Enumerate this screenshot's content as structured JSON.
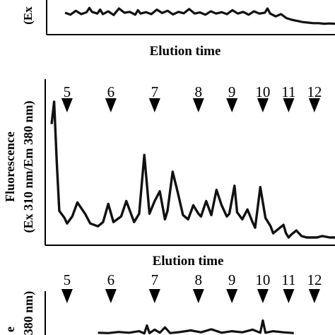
{
  "chart_data": [
    {
      "type": "line",
      "panel": "top (cropped)",
      "xlabel": "Elution time",
      "ylabel_fragment": "(Ex",
      "series": [
        {
          "color": "#111111",
          "x": [
            0,
            2,
            4,
            6,
            8,
            9,
            10,
            12,
            13,
            14,
            16,
            18,
            20,
            22,
            24,
            26,
            27,
            28,
            30,
            32,
            34,
            36,
            38,
            40,
            42,
            44,
            46,
            48,
            50,
            52,
            54,
            56,
            58,
            60,
            62,
            64,
            66,
            68,
            70,
            72,
            74,
            75,
            76,
            78,
            80,
            82,
            84,
            86,
            88,
            90,
            92,
            94,
            96,
            98,
            100
          ],
          "y": [
            0.55,
            0.48,
            0.62,
            0.5,
            0.57,
            0.72,
            0.58,
            0.52,
            0.66,
            0.5,
            0.6,
            0.47,
            0.7,
            0.55,
            0.58,
            0.48,
            0.64,
            0.52,
            0.57,
            0.5,
            0.66,
            0.54,
            0.62,
            0.49,
            0.58,
            0.53,
            0.68,
            0.52,
            0.56,
            0.48,
            0.6,
            0.52,
            0.57,
            0.5,
            0.64,
            0.52,
            0.58,
            0.48,
            0.6,
            0.52,
            0.55,
            0.7,
            0.52,
            0.42,
            0.5,
            0.36,
            0.3,
            0.26,
            0.22,
            0.2,
            0.18,
            0.18,
            0.16,
            0.17,
            0.16
          ]
        }
      ]
    },
    {
      "type": "line",
      "panel": "middle",
      "xlabel": "Elution time",
      "ylabel": "Fluorescence",
      "ylabel2": "(Ex 310 nm/Em 380 nm)",
      "markers": [
        "5",
        "6",
        "7",
        "8",
        "9",
        "10",
        "11",
        "12"
      ],
      "marker_positions": [
        6,
        23,
        40,
        57,
        70,
        82,
        92,
        102
      ],
      "xlim": [
        0,
        110
      ],
      "ylim": [
        0,
        1
      ],
      "series": [
        {
          "color": "#111111",
          "x": [
            0,
            1,
            2,
            3,
            5,
            6,
            8,
            10,
            13,
            15,
            18,
            20,
            22,
            24,
            27,
            29,
            32,
            34,
            36,
            38,
            40,
            42,
            44,
            45,
            47,
            49,
            51,
            53,
            55,
            57,
            58,
            60,
            62,
            64,
            66,
            68,
            69,
            71,
            72,
            74,
            76,
            78,
            79,
            81,
            83,
            85,
            86,
            88,
            90,
            91,
            92,
            93,
            95,
            97,
            99,
            101,
            103,
            105,
            108,
            110
          ],
          "y": [
            0.82,
            0.98,
            0.55,
            0.2,
            0.15,
            0.11,
            0.16,
            0.26,
            0.18,
            0.11,
            0.09,
            0.12,
            0.25,
            0.12,
            0.16,
            0.27,
            0.12,
            0.18,
            0.6,
            0.18,
            0.27,
            0.34,
            0.14,
            0.2,
            0.48,
            0.33,
            0.17,
            0.14,
            0.24,
            0.18,
            0.16,
            0.27,
            0.17,
            0.35,
            0.24,
            0.16,
            0.18,
            0.38,
            0.19,
            0.14,
            0.21,
            0.12,
            0.08,
            0.37,
            0.15,
            0.09,
            0.04,
            0.07,
            0.1,
            0.04,
            0.01,
            0.03,
            0.06,
            0.02,
            0.01,
            0.01,
            0.01,
            0.02,
            0.01,
            0.01
          ]
        }
      ]
    },
    {
      "type": "line",
      "panel": "bottom (cropped)",
      "ylabel_fragment_1": "e",
      "ylabel_fragment_2": "380 nm)",
      "markers": [
        "5",
        "6",
        "7",
        "8",
        "9",
        "10",
        "11",
        "12"
      ],
      "marker_positions": [
        6,
        23,
        40,
        57,
        70,
        82,
        92,
        102
      ],
      "xlim": [
        0,
        110
      ],
      "series": [
        {
          "color": "#111111",
          "x": [
            18,
            22,
            26,
            30,
            34,
            36,
            37,
            38,
            40,
            42,
            44,
            46,
            50,
            54,
            58,
            62,
            66,
            70,
            74,
            78,
            81,
            82,
            83,
            86,
            90,
            94
          ],
          "y": [
            0.06,
            0.05,
            0.08,
            0.06,
            0.1,
            0.04,
            0.25,
            0.05,
            0.14,
            0.06,
            0.2,
            0.05,
            0.08,
            0.12,
            0.07,
            0.15,
            0.06,
            0.1,
            0.07,
            0.14,
            0.06,
            0.38,
            0.06,
            0.1,
            0.07,
            0.05
          ]
        }
      ]
    }
  ]
}
